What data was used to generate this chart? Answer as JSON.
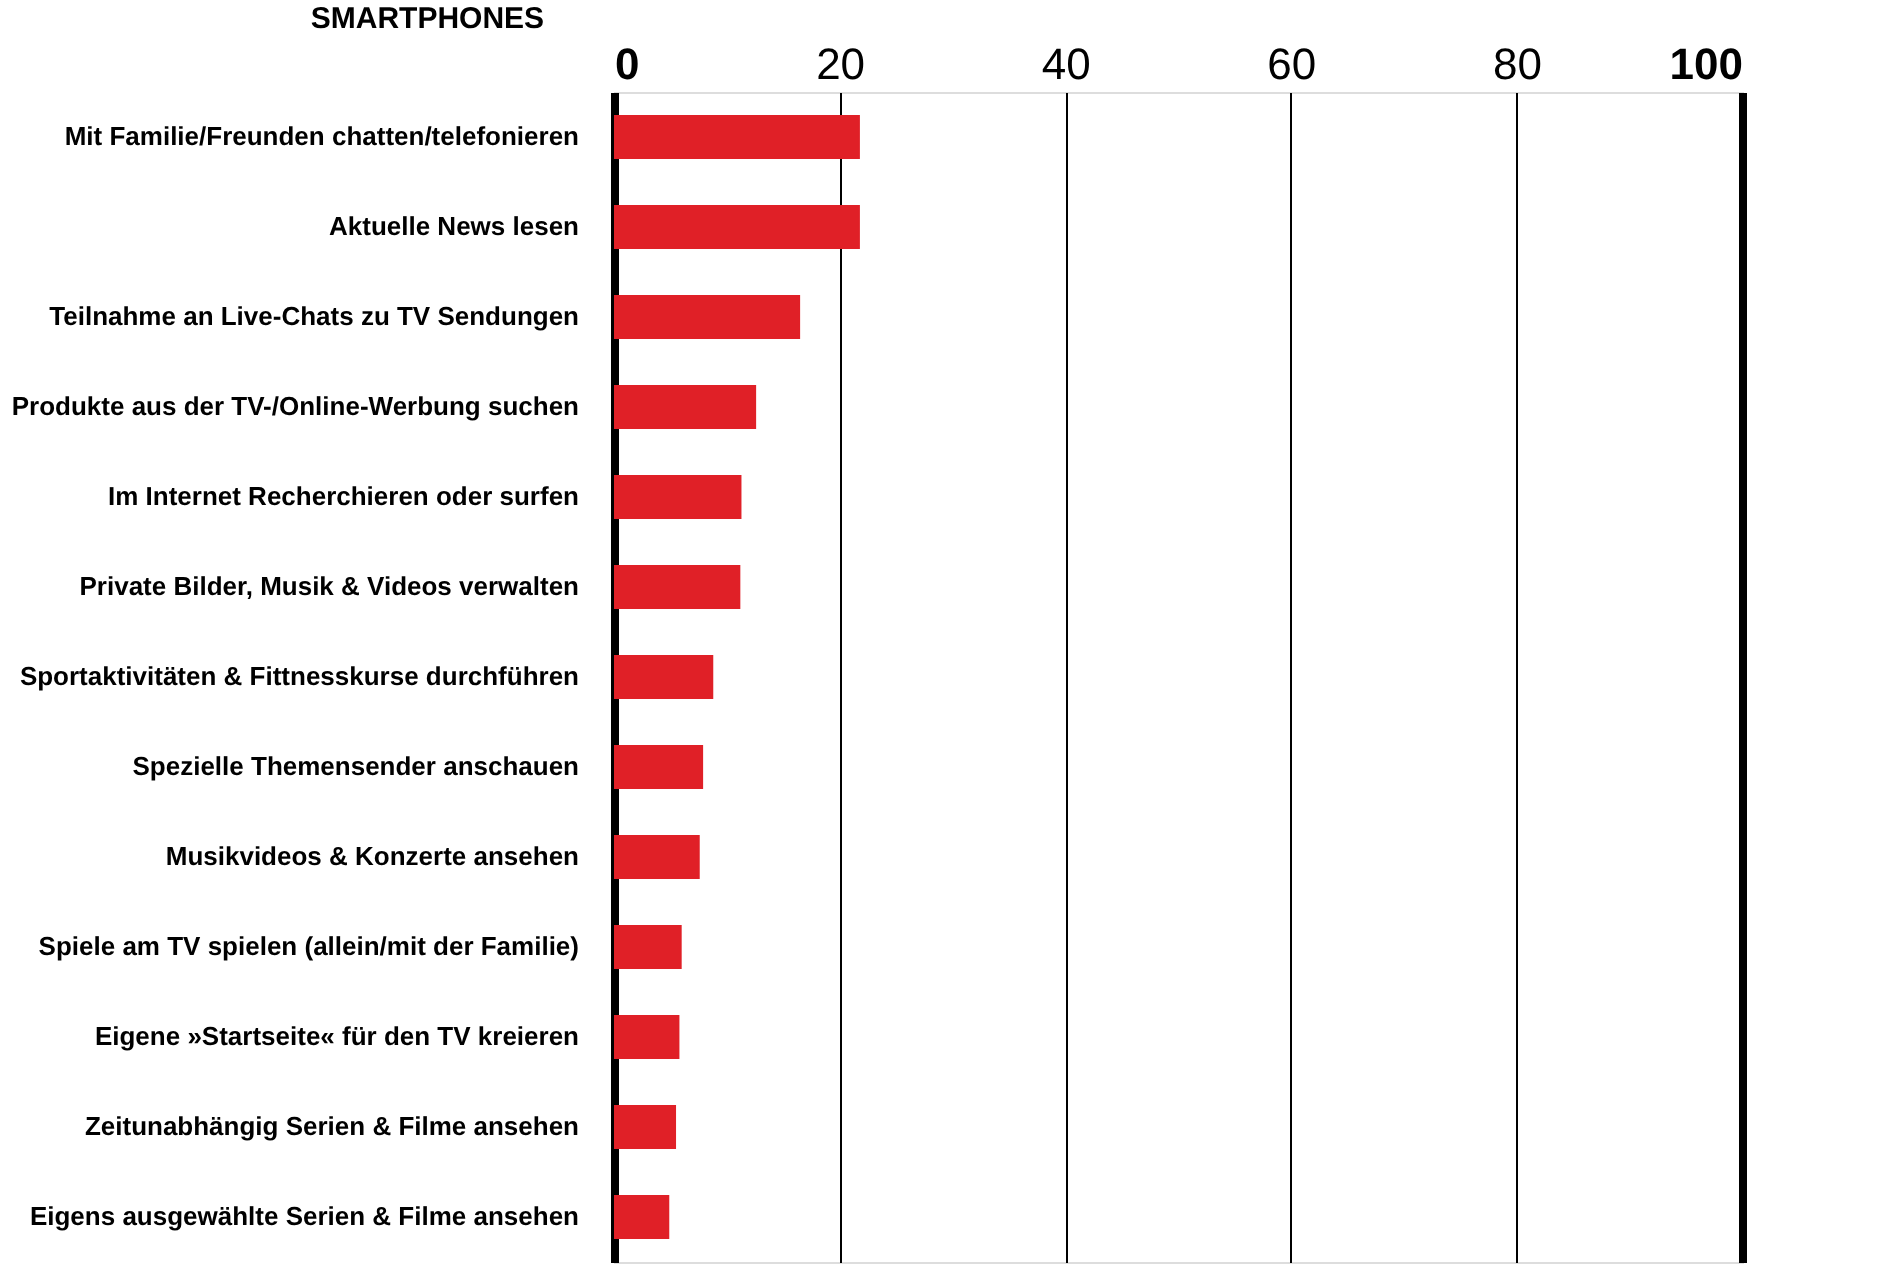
{
  "chart_data": {
    "type": "bar",
    "orientation": "horizontal",
    "title": "SMARTPHONES",
    "categories": [
      "Mit Familie/Freunden chatten/telefonieren",
      "Aktuelle News lesen",
      "Teilnahme an Live-Chats zu TV Sendungen",
      "Produkte aus der TV-/Online-Werbung suchen",
      "Im Internet Recherchieren oder surfen",
      "Private Bilder, Musik & Videos verwalten",
      "Sportaktivitäten & Fittnesskurse durchführen",
      "Spezielle Themensender anschauen",
      "Musikvideos & Konzerte ansehen",
      "Spiele am TV spielen (allein/mit der Familie)",
      "Eigene »Startseite« für den TV kreieren",
      "Zeitunabhängig Serien & Filme ansehen",
      "Eigens ausgewählte Serien & Filme ansehen"
    ],
    "values": [
      21.8,
      21.8,
      16.5,
      12.6,
      11.3,
      11.2,
      8.8,
      7.9,
      7.6,
      6.0,
      5.8,
      5.5,
      4.9
    ],
    "color": "#e02027",
    "xlim": [
      0,
      100
    ],
    "xticks": [
      0,
      20,
      40,
      60,
      80,
      100
    ],
    "grid": "x"
  }
}
